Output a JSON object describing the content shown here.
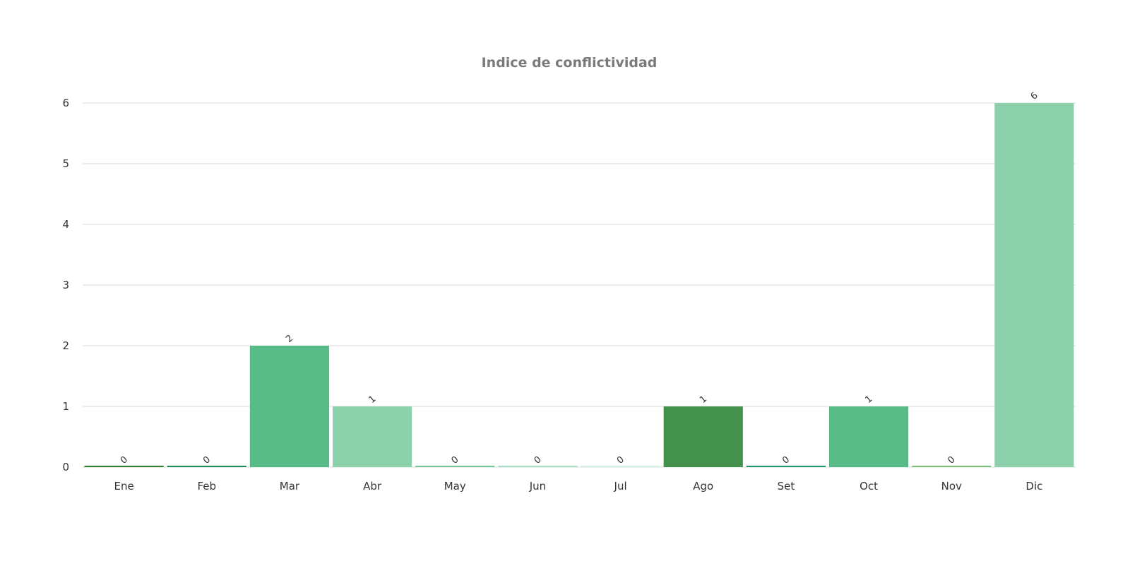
{
  "chart_data": {
    "type": "bar",
    "title": "Indice de conflictividad",
    "xlabel": "",
    "ylabel": "",
    "categories": [
      "Ene",
      "Feb",
      "Mar",
      "Abr",
      "May",
      "Jun",
      "Jul",
      "Ago",
      "Set",
      "Oct",
      "Nov",
      "Dic"
    ],
    "values": [
      0,
      0,
      2,
      1,
      0,
      0,
      0,
      1,
      0,
      1,
      0,
      6
    ],
    "data_labels": [
      "0",
      "0",
      "2",
      "1",
      "0",
      "0",
      "0",
      "1",
      "0",
      "1",
      "0",
      "6"
    ],
    "colors": [
      "#2e7d32",
      "#1e8e5a",
      "#59bb87",
      "#8dd0ac",
      "#72c79b",
      "#a8dfc4",
      "#d6f0e3",
      "#43914b",
      "#1c9a6c",
      "#59bb87",
      "#7fc17a",
      "#8dd0ac"
    ],
    "ylim": [
      0,
      6
    ],
    "yticks": [
      "0",
      "1",
      "2",
      "3",
      "4",
      "5",
      "6"
    ],
    "grid": true,
    "legend": "none"
  }
}
